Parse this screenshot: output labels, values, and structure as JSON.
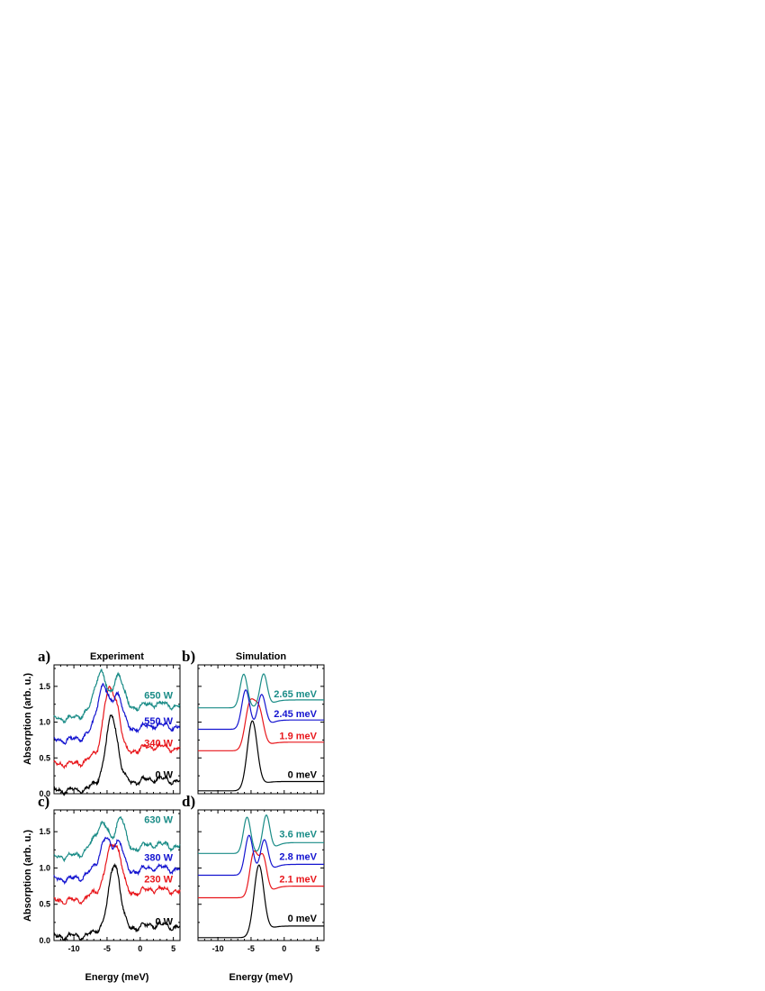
{
  "figure": {
    "ylabel": "Absorption (arb. u.)",
    "xlabel": "Energy (meV)"
  },
  "chart_data": [
    {
      "panel": "a)",
      "title": "Experiment",
      "type": "line",
      "xlim": [
        -13,
        6
      ],
      "ylim": [
        0,
        1.8
      ],
      "xticks": [
        -10,
        -5,
        0,
        5
      ],
      "yticks": [
        0.0,
        0.5,
        1.0,
        1.5
      ],
      "show_xticklabels": false,
      "show_yticklabels": true,
      "kind": "experiment",
      "series": [
        {
          "name": "0 W",
          "color": "#000000",
          "offset": 0.05,
          "plateau": 0.17,
          "peaks": [
            {
              "e": -4.2,
              "h": 0.98,
              "w": 0.9
            }
          ],
          "shoulder": -5.8,
          "label_y": 0.22
        },
        {
          "name": "340 W",
          "color": "#e8161b",
          "offset": 0.42,
          "plateau": 0.62,
          "peaks": [
            {
              "e": -4.9,
              "h": 0.85,
              "w": 0.75
            },
            {
              "e": -3.5,
              "h": 0.7,
              "w": 0.7
            }
          ],
          "shoulder": -6.5,
          "label_y": 0.66
        },
        {
          "name": "550 W",
          "color": "#1414d0",
          "offset": 0.75,
          "plateau": 0.92,
          "peaks": [
            {
              "e": -5.6,
              "h": 0.7,
              "w": 0.8
            },
            {
              "e": -3.4,
              "h": 0.64,
              "w": 0.8
            }
          ],
          "shoulder": -7.0,
          "label_y": 0.97
        },
        {
          "name": "650 W",
          "color": "#1a8c87",
          "offset": 1.05,
          "plateau": 1.22,
          "peaks": [
            {
              "e": -5.9,
              "h": 0.62,
              "w": 0.8
            },
            {
              "e": -3.3,
              "h": 0.62,
              "w": 0.8
            }
          ],
          "shoulder": -7.3,
          "label_y": 1.33
        }
      ]
    },
    {
      "panel": "b)",
      "title": "Simulation",
      "type": "line",
      "xlim": [
        -13,
        6
      ],
      "ylim": [
        0,
        1.8
      ],
      "xticks": [
        -10,
        -5,
        0,
        5
      ],
      "yticks": [
        0.0,
        0.5,
        1.0,
        1.5
      ],
      "show_xticklabels": false,
      "show_yticklabels": false,
      "kind": "simulation",
      "series": [
        {
          "name": "0 meV",
          "color": "#000000",
          "offset": 0.04,
          "plateau": 0.17,
          "peaks": [
            {
              "e": -4.8,
              "h": 0.98,
              "w": 0.75
            }
          ],
          "label_y": 0.22
        },
        {
          "name": "1.9 meV",
          "color": "#e8161b",
          "offset": 0.6,
          "plateau": 0.72,
          "peaks": [
            {
              "e": -5.2,
              "h": 0.62,
              "w": 0.7
            },
            {
              "e": -3.8,
              "h": 0.55,
              "w": 0.7
            }
          ],
          "label_y": 0.76
        },
        {
          "name": "2.45 meV",
          "color": "#1414d0",
          "offset": 0.9,
          "plateau": 1.03,
          "peaks": [
            {
              "e": -5.8,
              "h": 0.55,
              "w": 0.6
            },
            {
              "e": -3.4,
              "h": 0.48,
              "w": 0.6
            }
          ],
          "label_y": 1.07
        },
        {
          "name": "2.65 meV",
          "color": "#1a8c87",
          "offset": 1.2,
          "plateau": 1.31,
          "peaks": [
            {
              "e": -6.1,
              "h": 0.47,
              "w": 0.55
            },
            {
              "e": -3.1,
              "h": 0.47,
              "w": 0.55
            }
          ],
          "label_y": 1.35
        }
      ]
    },
    {
      "panel": "c)",
      "title": "",
      "type": "line",
      "xlim": [
        -13,
        6
      ],
      "ylim": [
        0,
        1.8
      ],
      "xticks": [
        -10,
        -5,
        0,
        5
      ],
      "yticks": [
        0.0,
        0.5,
        1.0,
        1.5
      ],
      "show_xticklabels": true,
      "show_yticklabels": true,
      "kind": "experiment",
      "series": [
        {
          "name": "0 W",
          "color": "#000000",
          "offset": 0.06,
          "plateau": 0.18,
          "peaks": [
            {
              "e": -3.8,
              "h": 0.96,
              "w": 0.85
            }
          ],
          "shoulder": -5.5,
          "label_y": 0.22
        },
        {
          "name": "230 W",
          "color": "#e8161b",
          "offset": 0.55,
          "plateau": 0.67,
          "peaks": [
            {
              "e": -4.5,
              "h": 0.6,
              "w": 0.8
            },
            {
              "e": -3.2,
              "h": 0.52,
              "w": 0.7
            }
          ],
          "shoulder": -6.3,
          "label_y": 0.8
        },
        {
          "name": "380 W",
          "color": "#1414d0",
          "offset": 0.85,
          "plateau": 0.97,
          "peaks": [
            {
              "e": -5.2,
              "h": 0.5,
              "w": 0.8
            },
            {
              "e": -3.2,
              "h": 0.52,
              "w": 0.7
            }
          ],
          "shoulder": -6.8,
          "label_y": 1.1
        },
        {
          "name": "630 W",
          "color": "#1a8c87",
          "offset": 1.16,
          "plateau": 1.29,
          "peaks": [
            {
              "e": -5.6,
              "h": 0.42,
              "w": 0.9
            },
            {
              "e": -3.0,
              "h": 0.55,
              "w": 0.7
            }
          ],
          "shoulder": -7.2,
          "label_y": 1.62
        }
      ]
    },
    {
      "panel": "d)",
      "title": "",
      "type": "line",
      "xlim": [
        -13,
        6
      ],
      "ylim": [
        0,
        1.8
      ],
      "xticks": [
        -10,
        -5,
        0,
        5
      ],
      "yticks": [
        0.0,
        0.5,
        1.0,
        1.5
      ],
      "show_xticklabels": true,
      "show_yticklabels": false,
      "kind": "simulation",
      "series": [
        {
          "name": "0 meV",
          "color": "#000000",
          "offset": 0.04,
          "plateau": 0.2,
          "peaks": [
            {
              "e": -3.8,
              "h": 1.0,
              "w": 0.75
            }
          ],
          "label_y": 0.26
        },
        {
          "name": "2.1 meV",
          "color": "#e8161b",
          "offset": 0.59,
          "plateau": 0.75,
          "peaks": [
            {
              "e": -4.6,
              "h": 0.6,
              "w": 0.6
            },
            {
              "e": -3.2,
              "h": 0.55,
              "w": 0.6
            }
          ],
          "label_y": 0.8
        },
        {
          "name": "2.8 meV",
          "color": "#1414d0",
          "offset": 0.9,
          "plateau": 1.05,
          "peaks": [
            {
              "e": -5.3,
              "h": 0.55,
              "w": 0.6
            },
            {
              "e": -3.0,
              "h": 0.48,
              "w": 0.6
            }
          ],
          "label_y": 1.11
        },
        {
          "name": "3.6 meV",
          "color": "#1a8c87",
          "offset": 1.2,
          "plateau": 1.35,
          "peaks": [
            {
              "e": -5.6,
              "h": 0.5,
              "w": 0.55
            },
            {
              "e": -2.7,
              "h": 0.52,
              "w": 0.55
            }
          ],
          "label_y": 1.42
        }
      ]
    }
  ]
}
